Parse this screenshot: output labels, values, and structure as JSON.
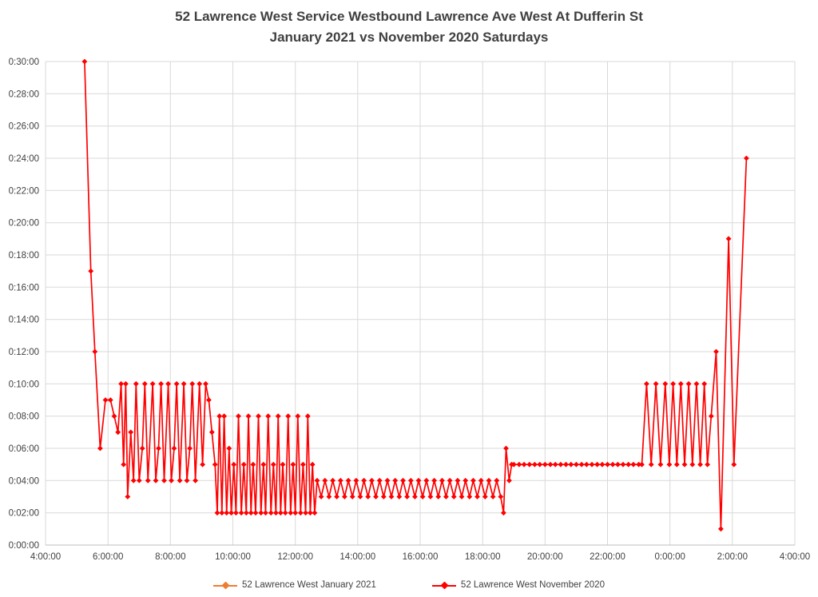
{
  "title": {
    "line1": "52 Lawrence West Service Westbound Lawrence Ave West At Dufferin St",
    "line2": "January 2021 vs November 2020 Saturdays"
  },
  "style": {
    "background": "#FFFFFF",
    "grid_color": "#D9D9D9",
    "axis_line_color": "#BFBFBF",
    "axis_text_color": "#404040",
    "title_color": "#404040"
  },
  "chart_data": {
    "type": "line",
    "title": "52 Lawrence West Service Westbound Lawrence Ave West At Dufferin St January 2021 vs November 2020 Saturdays",
    "xlabel": "",
    "ylabel": "",
    "x_unit": "time of day (hours, values past 24 are after midnight)",
    "y_unit": "headway (minutes)",
    "grid": true,
    "legend_position": "bottom",
    "x_axis": {
      "tick_labels": [
        "4:00:00",
        "6:00:00",
        "8:00:00",
        "10:00:00",
        "12:00:00",
        "14:00:00",
        "16:00:00",
        "18:00:00",
        "20:00:00",
        "22:00:00",
        "0:00:00",
        "2:00:00",
        "4:00:00"
      ],
      "tick_hours": [
        4,
        6,
        8,
        10,
        12,
        14,
        16,
        18,
        20,
        22,
        24,
        26,
        28
      ],
      "range_hours": [
        4,
        28
      ]
    },
    "y_axis": {
      "tick_labels": [
        "0:00:00",
        "0:02:00",
        "0:04:00",
        "0:06:00",
        "0:08:00",
        "0:10:00",
        "0:12:00",
        "0:14:00",
        "0:16:00",
        "0:18:00",
        "0:20:00",
        "0:22:00",
        "0:24:00",
        "0:26:00",
        "0:28:00",
        "0:30:00"
      ],
      "tick_minutes": [
        0,
        2,
        4,
        6,
        8,
        10,
        12,
        14,
        16,
        18,
        20,
        22,
        24,
        26,
        28,
        30
      ],
      "range_minutes": [
        0,
        30
      ]
    },
    "series": [
      {
        "name": "52 Lawrence West January 2021",
        "color": "#ED7D31",
        "marker": "diamond",
        "points": []
      },
      {
        "name": "52 Lawrence West November 2020",
        "color": "#FF0000",
        "marker": "diamond",
        "points": [
          [
            5.25,
            30
          ],
          [
            5.45,
            17
          ],
          [
            5.58,
            12
          ],
          [
            5.75,
            6
          ],
          [
            5.92,
            9
          ],
          [
            6.08,
            9
          ],
          [
            6.2,
            8
          ],
          [
            6.32,
            7
          ],
          [
            6.42,
            10
          ],
          [
            6.5,
            5
          ],
          [
            6.57,
            10
          ],
          [
            6.63,
            3
          ],
          [
            6.73,
            7
          ],
          [
            6.82,
            4
          ],
          [
            6.9,
            10
          ],
          [
            7.0,
            4
          ],
          [
            7.1,
            6
          ],
          [
            7.18,
            10
          ],
          [
            7.28,
            4
          ],
          [
            7.43,
            10
          ],
          [
            7.53,
            4
          ],
          [
            7.62,
            6
          ],
          [
            7.7,
            10
          ],
          [
            7.8,
            4
          ],
          [
            7.93,
            10
          ],
          [
            8.03,
            4
          ],
          [
            8.12,
            6
          ],
          [
            8.2,
            10
          ],
          [
            8.3,
            4
          ],
          [
            8.43,
            10
          ],
          [
            8.53,
            4
          ],
          [
            8.62,
            6
          ],
          [
            8.7,
            10
          ],
          [
            8.8,
            4
          ],
          [
            8.93,
            10
          ],
          [
            9.03,
            5
          ],
          [
            9.13,
            10
          ],
          [
            9.23,
            9
          ],
          [
            9.33,
            7
          ],
          [
            9.43,
            5
          ],
          [
            9.5,
            2
          ],
          [
            9.57,
            8
          ],
          [
            9.65,
            2
          ],
          [
            9.72,
            8
          ],
          [
            9.8,
            2
          ],
          [
            9.88,
            6
          ],
          [
            9.95,
            2
          ],
          [
            10.03,
            5
          ],
          [
            10.1,
            2
          ],
          [
            10.18,
            8
          ],
          [
            10.27,
            2
          ],
          [
            10.35,
            5
          ],
          [
            10.43,
            2
          ],
          [
            10.5,
            8
          ],
          [
            10.58,
            2
          ],
          [
            10.65,
            5
          ],
          [
            10.73,
            2
          ],
          [
            10.82,
            8
          ],
          [
            10.9,
            2
          ],
          [
            10.98,
            5
          ],
          [
            11.05,
            2
          ],
          [
            11.13,
            8
          ],
          [
            11.22,
            2
          ],
          [
            11.3,
            5
          ],
          [
            11.38,
            2
          ],
          [
            11.45,
            8
          ],
          [
            11.53,
            2
          ],
          [
            11.6,
            5
          ],
          [
            11.68,
            2
          ],
          [
            11.77,
            8
          ],
          [
            11.85,
            2
          ],
          [
            11.93,
            5
          ],
          [
            12.0,
            2
          ],
          [
            12.08,
            8
          ],
          [
            12.17,
            2
          ],
          [
            12.25,
            5
          ],
          [
            12.33,
            2
          ],
          [
            12.4,
            8
          ],
          [
            12.48,
            2
          ],
          [
            12.55,
            5
          ],
          [
            12.62,
            2
          ],
          [
            12.7,
            4
          ],
          [
            12.83,
            3
          ],
          [
            12.95,
            4
          ],
          [
            13.08,
            3
          ],
          [
            13.2,
            4
          ],
          [
            13.33,
            3
          ],
          [
            13.45,
            4
          ],
          [
            13.58,
            3
          ],
          [
            13.7,
            4
          ],
          [
            13.83,
            3
          ],
          [
            13.95,
            4
          ],
          [
            14.08,
            3
          ],
          [
            14.2,
            4
          ],
          [
            14.33,
            3
          ],
          [
            14.45,
            4
          ],
          [
            14.58,
            3
          ],
          [
            14.7,
            4
          ],
          [
            14.83,
            3
          ],
          [
            14.95,
            4
          ],
          [
            15.08,
            3
          ],
          [
            15.2,
            4
          ],
          [
            15.33,
            3
          ],
          [
            15.45,
            4
          ],
          [
            15.58,
            3
          ],
          [
            15.7,
            4
          ],
          [
            15.83,
            3
          ],
          [
            15.95,
            4
          ],
          [
            16.08,
            3
          ],
          [
            16.2,
            4
          ],
          [
            16.33,
            3
          ],
          [
            16.45,
            4
          ],
          [
            16.58,
            3
          ],
          [
            16.7,
            4
          ],
          [
            16.83,
            3
          ],
          [
            16.95,
            4
          ],
          [
            17.08,
            3
          ],
          [
            17.2,
            4
          ],
          [
            17.33,
            3
          ],
          [
            17.45,
            4
          ],
          [
            17.58,
            3
          ],
          [
            17.7,
            4
          ],
          [
            17.83,
            3
          ],
          [
            17.95,
            4
          ],
          [
            18.08,
            3
          ],
          [
            18.2,
            4
          ],
          [
            18.33,
            3
          ],
          [
            18.45,
            4
          ],
          [
            18.58,
            3
          ],
          [
            18.67,
            2
          ],
          [
            18.75,
            6
          ],
          [
            18.85,
            4
          ],
          [
            18.93,
            5
          ],
          [
            19.0,
            5
          ],
          [
            19.17,
            5
          ],
          [
            19.33,
            5
          ],
          [
            19.5,
            5
          ],
          [
            19.67,
            5
          ],
          [
            19.83,
            5
          ],
          [
            20.0,
            5
          ],
          [
            20.17,
            5
          ],
          [
            20.33,
            5
          ],
          [
            20.5,
            5
          ],
          [
            20.67,
            5
          ],
          [
            20.83,
            5
          ],
          [
            21.0,
            5
          ],
          [
            21.17,
            5
          ],
          [
            21.33,
            5
          ],
          [
            21.5,
            5
          ],
          [
            21.67,
            5
          ],
          [
            21.83,
            5
          ],
          [
            22.0,
            5
          ],
          [
            22.17,
            5
          ],
          [
            22.33,
            5
          ],
          [
            22.5,
            5
          ],
          [
            22.67,
            5
          ],
          [
            22.83,
            5
          ],
          [
            23.0,
            5
          ],
          [
            23.1,
            5
          ],
          [
            23.25,
            10
          ],
          [
            23.4,
            5
          ],
          [
            23.55,
            10
          ],
          [
            23.7,
            5
          ],
          [
            23.85,
            10
          ],
          [
            23.98,
            5
          ],
          [
            24.1,
            10
          ],
          [
            24.22,
            5
          ],
          [
            24.35,
            10
          ],
          [
            24.47,
            5
          ],
          [
            24.6,
            10
          ],
          [
            24.72,
            5
          ],
          [
            24.85,
            10
          ],
          [
            24.97,
            5
          ],
          [
            25.1,
            10
          ],
          [
            25.2,
            5
          ],
          [
            25.32,
            8
          ],
          [
            25.48,
            12
          ],
          [
            25.63,
            1
          ],
          [
            25.88,
            19
          ],
          [
            26.05,
            5
          ],
          [
            26.45,
            24
          ]
        ]
      }
    ]
  }
}
